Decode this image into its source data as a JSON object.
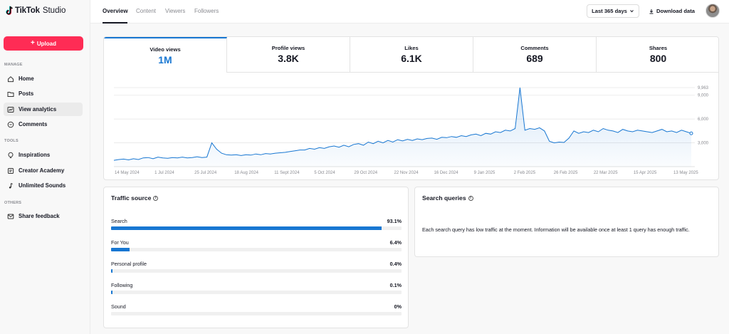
{
  "app": {
    "brand": "TikTok",
    "product": "Studio"
  },
  "sidebar": {
    "upload_label": "Upload",
    "sections": {
      "manage": "MANAGE",
      "tools": "TOOLS",
      "others": "OTHERS"
    },
    "items": [
      {
        "label": "Home",
        "icon": "home-icon"
      },
      {
        "label": "Posts",
        "icon": "folder-icon"
      },
      {
        "label": "View analytics",
        "icon": "analytics-icon",
        "active": true
      },
      {
        "label": "Comments",
        "icon": "comment-icon"
      },
      {
        "label": "Inspirations",
        "icon": "lightbulb-icon"
      },
      {
        "label": "Creator Academy",
        "icon": "academy-icon"
      },
      {
        "label": "Unlimited Sounds",
        "icon": "music-note-icon"
      },
      {
        "label": "Share feedback",
        "icon": "feedback-icon"
      }
    ]
  },
  "topbar": {
    "tabs": [
      "Overview",
      "Content",
      "Viewers",
      "Followers"
    ],
    "active_tab": "Overview",
    "date_range": "Last 365 days",
    "download_label": "Download data"
  },
  "metrics": [
    {
      "label": "Video views",
      "value": "1M",
      "active": true
    },
    {
      "label": "Profile views",
      "value": "3.8K"
    },
    {
      "label": "Likes",
      "value": "6.1K"
    },
    {
      "label": "Comments",
      "value": "689"
    },
    {
      "label": "Shares",
      "value": "800"
    }
  ],
  "chart_data": {
    "type": "area",
    "title": "",
    "ylabel": "",
    "y_ticks": [
      "9,963",
      "9,000",
      "6,000",
      "3,000"
    ],
    "x_tick_labels": [
      "14 May 2024",
      "1 Jul 2024",
      "25 Jul 2024",
      "18 Aug 2024",
      "11 Sept 2024",
      "5 Oct 2024",
      "29 Oct 2024",
      "22 Nov 2024",
      "16 Dec 2024",
      "9 Jan 2025",
      "2 Feb 2025",
      "26 Feb 2025",
      "22 Mar 2025",
      "15 Apr 2025",
      "13 May 2025"
    ],
    "ylim": [
      0,
      9963
    ],
    "series": [
      {
        "values": [
          800,
          900,
          950,
          850,
          1000,
          900,
          1100,
          1150,
          1000,
          1200,
          1100,
          1050,
          1150,
          1100,
          1200,
          1100,
          1150,
          1250,
          1150,
          1200,
          3000,
          2200,
          1700,
          1500,
          1450,
          1500,
          1400,
          1500,
          1450,
          1600,
          1500,
          1650,
          1600,
          1700,
          1750,
          1800,
          1900,
          2000,
          2100,
          2100,
          2300,
          2200,
          2400,
          2300,
          2500,
          2600,
          2450,
          2700,
          2500,
          2800,
          2900,
          2700,
          3100,
          2900,
          3200,
          3000,
          3300,
          3100,
          3400,
          3250,
          3450,
          3300,
          3500,
          3400,
          3550,
          3600,
          3450,
          3700,
          3650,
          3800,
          3700,
          3900,
          3800,
          4000,
          4100,
          3900,
          4200,
          4100,
          4400,
          4300,
          4600,
          4500,
          4800,
          9963,
          4600,
          4800,
          4700,
          4900,
          4500,
          3200,
          3000,
          3100,
          3050,
          3600,
          4500,
          4200,
          4400,
          4300,
          4600,
          4400,
          4800,
          4600,
          4500,
          4300,
          4700,
          4500,
          4400,
          4600,
          4500,
          4400,
          4300,
          4500,
          4700,
          4400,
          4500,
          4300,
          4600,
          4400,
          4200
        ]
      }
    ],
    "grid": true
  },
  "traffic_source": {
    "title": "Traffic source",
    "rows": [
      {
        "label": "Search",
        "pct_label": "93.1%",
        "pct": 93.1
      },
      {
        "label": "For You",
        "pct_label": "6.4%",
        "pct": 6.4
      },
      {
        "label": "Personal profile",
        "pct_label": "0.4%",
        "pct": 0.4
      },
      {
        "label": "Following",
        "pct_label": "0.1%",
        "pct": 0.1
      },
      {
        "label": "Sound",
        "pct_label": "0%",
        "pct": 0
      }
    ]
  },
  "search_queries": {
    "title": "Search queries",
    "message": "Each search query has low traffic at the moment. Information will be available once at least 1 query has enough traffic."
  },
  "colors": {
    "accent": "#1877d2",
    "upload": "#fe2c55"
  }
}
